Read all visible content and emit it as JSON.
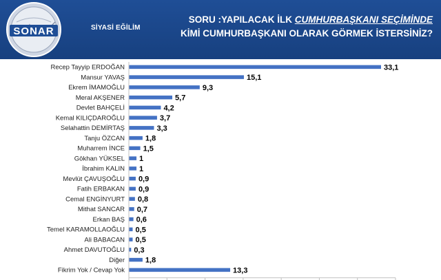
{
  "header": {
    "logo_text": "SONAR",
    "section_label": "SİYASİ EĞİLİM",
    "question_prefix": "SORU :YAPILACAK İLK ",
    "question_emph": "CUMHURBAŞKANI SEÇİMİNDE",
    "question_line2": "KİMİ CUMHURBAŞKANI OLARAK GÖRMEK İSTERSİNİZ?"
  },
  "colors": {
    "header_bg": "#1f4e96",
    "bar": "#4472c4",
    "axis": "#bfbfbf",
    "text": "#222222"
  },
  "chart_data": {
    "type": "bar",
    "orientation": "horizontal",
    "categories": [
      "Recep Tayyip ERDOĞAN",
      "Mansur YAVAŞ",
      "Ekrem İMAMOĞLU",
      "Meral AKŞENER",
      "Devlet BAHÇELİ",
      "Kemal KILIÇDAROĞLU",
      "Selahattin DEMİRTAŞ",
      "Tanju ÖZCAN",
      "Muharrem İNCE",
      "Gökhan YÜKSEL",
      "İbrahim KALIN",
      "Mevlüt ÇAVUŞOĞLU",
      "Fatih ERBAKAN",
      "Cemal ENGİNYURT",
      "Mithat SANCAR",
      "Erkan BAŞ",
      "Temel KARAMOLLAOĞLU",
      "Ali BABACAN",
      "Ahmet DAVUTOĞLU",
      "Diğer",
      "Fikrim Yok / Cevap Yok"
    ],
    "values": [
      33.1,
      15.1,
      9.3,
      5.7,
      4.2,
      3.7,
      3.3,
      1.8,
      1.5,
      1,
      1,
      0.9,
      0.9,
      0.8,
      0.7,
      0.6,
      0.5,
      0.5,
      0.3,
      1.8,
      13.3
    ],
    "value_labels": [
      "33,1",
      "15,1",
      "9,3",
      "5,7",
      "4,2",
      "3,7",
      "3,3",
      "1,8",
      "1,5",
      "1",
      "1",
      "0,9",
      "0,9",
      "0,8",
      "0,7",
      "0,6",
      "0,5",
      "0,5",
      "0,3",
      "1,8",
      "13,3"
    ],
    "xlim": [
      0,
      35
    ],
    "xticks": [
      0,
      5,
      10,
      15,
      20,
      25,
      30,
      35
    ],
    "title": "",
    "xlabel": "",
    "ylabel": "",
    "grid": false,
    "legend": "none"
  }
}
